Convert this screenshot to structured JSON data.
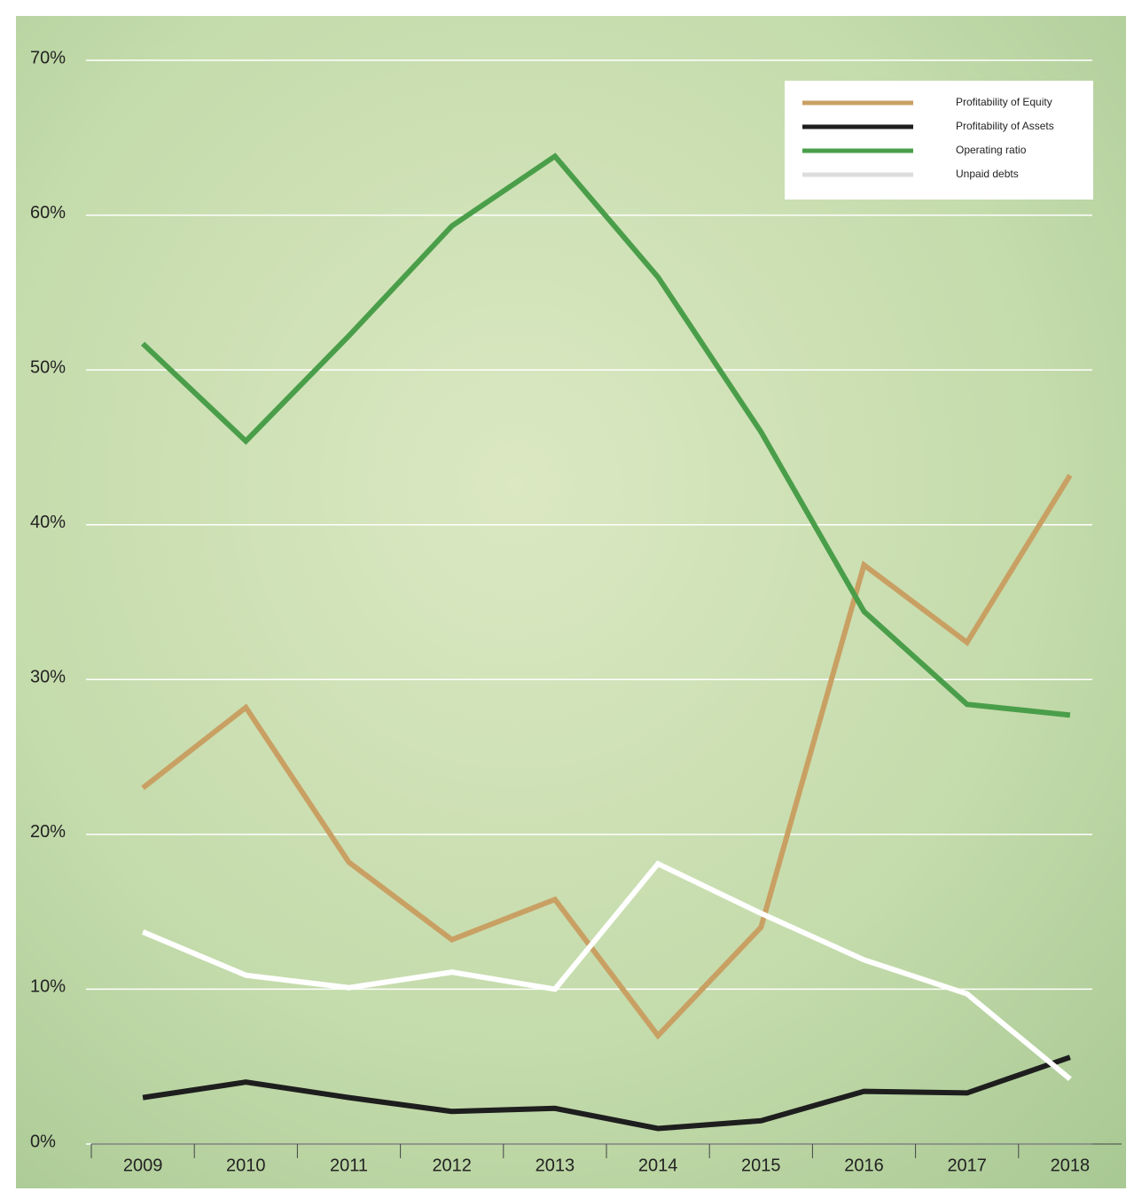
{
  "chart_data": {
    "type": "line",
    "categories": [
      "2009",
      "2010",
      "2011",
      "2012",
      "2013",
      "2014",
      "2015",
      "2016",
      "2017",
      "2018"
    ],
    "series": [
      {
        "name": "Profitability of Equity",
        "color": "#c9a063",
        "values": [
          23.0,
          28.2,
          18.2,
          13.2,
          15.8,
          7.0,
          14.0,
          37.4,
          32.4,
          43.2
        ]
      },
      {
        "name": "Profitability of Assets",
        "color": "#1e1e1e",
        "values": [
          3.0,
          4.0,
          3.0,
          2.1,
          2.3,
          1.0,
          1.5,
          3.4,
          3.3,
          5.6
        ]
      },
      {
        "name": "Operating ratio",
        "color": "#4a9e4a",
        "values": [
          51.7,
          45.4,
          52.2,
          59.3,
          63.8,
          56.0,
          46.0,
          34.4,
          28.4,
          27.7
        ]
      },
      {
        "name": "Unpaid debts",
        "color": "#ffffff",
        "values": [
          13.7,
          10.9,
          10.1,
          11.1,
          10.0,
          18.1,
          14.9,
          11.9,
          9.7,
          4.2
        ]
      }
    ],
    "ylim": [
      0,
      70
    ],
    "yticks": [
      {
        "value": 0,
        "label": "0%"
      },
      {
        "value": 10,
        "label": "10%"
      },
      {
        "value": 20,
        "label": "20%"
      },
      {
        "value": 30,
        "label": "30%"
      },
      {
        "value": 40,
        "label": "40%"
      },
      {
        "value": 50,
        "label": "50%"
      },
      {
        "value": 60,
        "label": "60%"
      },
      {
        "value": 70,
        "label": "70%"
      }
    ],
    "grid": true,
    "legend": "upper right"
  }
}
